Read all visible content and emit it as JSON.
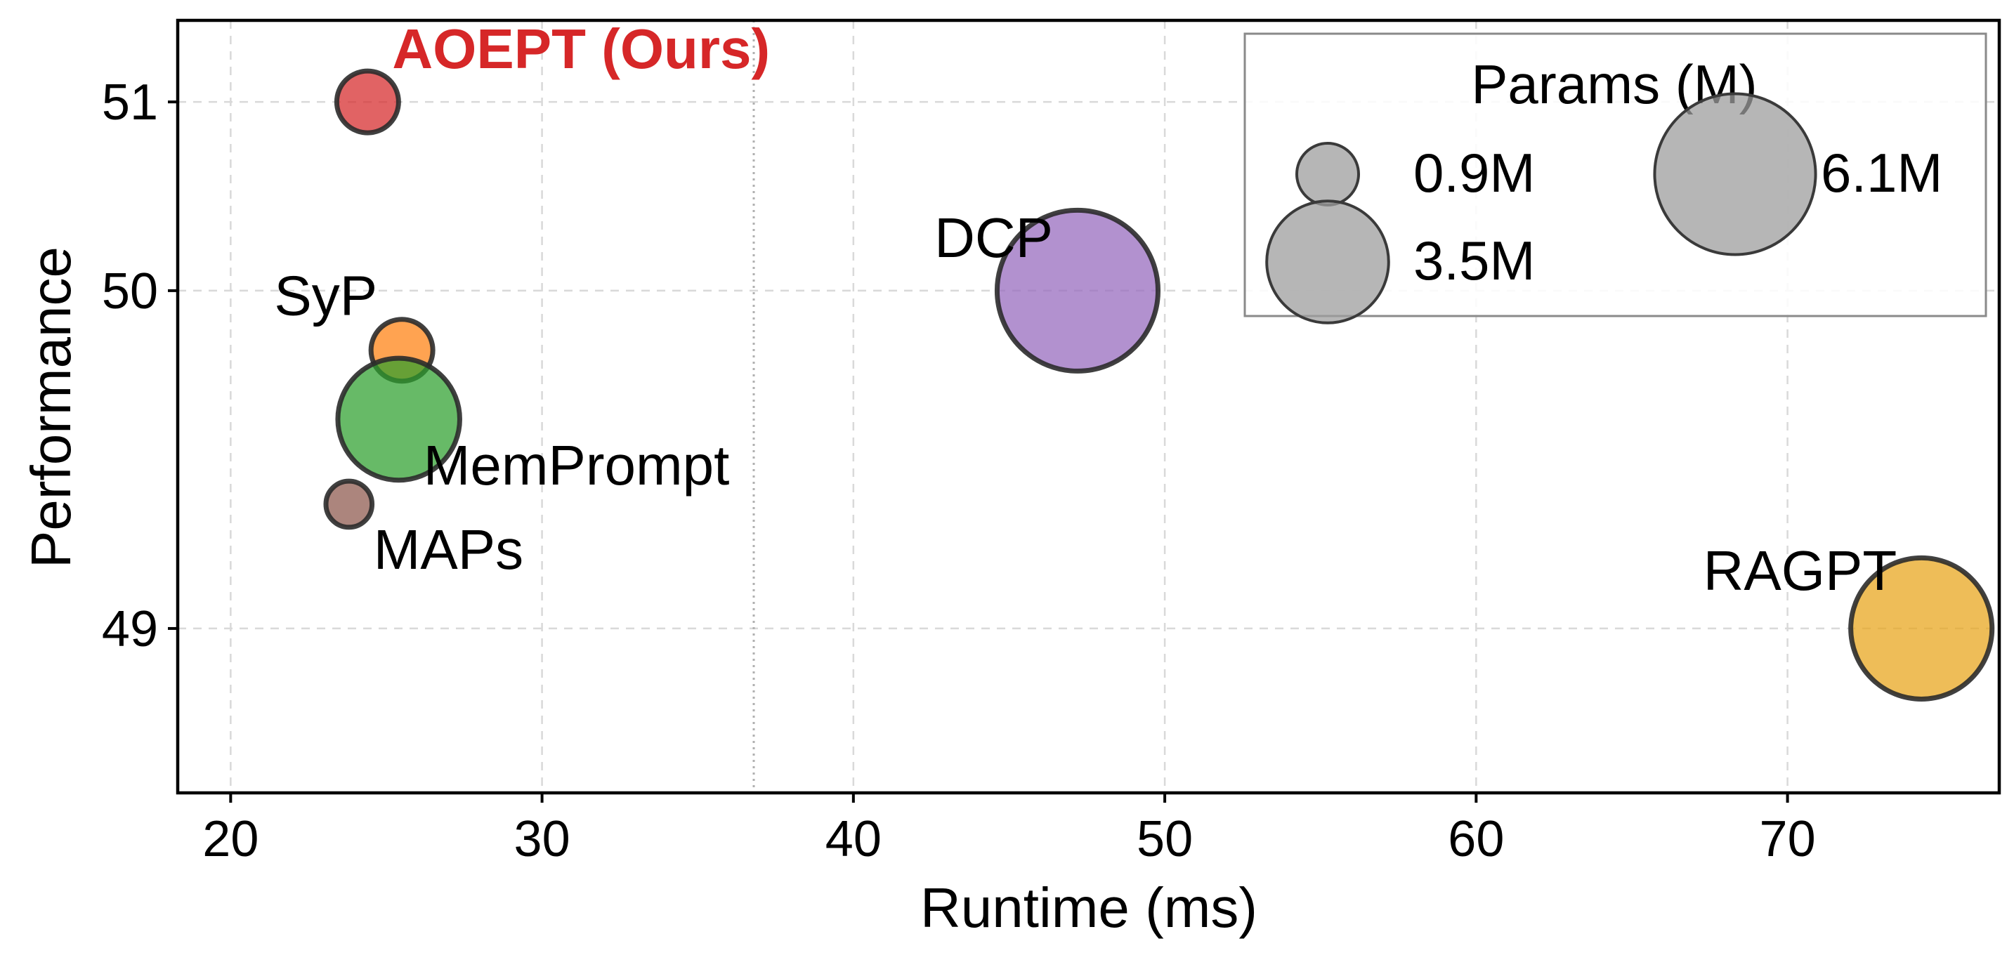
{
  "chart_data": {
    "type": "scatter",
    "xlabel": "Runtime (ms)",
    "ylabel": "Performance",
    "xlim": [
      18.3,
      76.8
    ],
    "ylim": [
      48.88,
      51.53
    ],
    "y_scale": "sqrt",
    "x_ticks": [
      20,
      30,
      40,
      50,
      60,
      70
    ],
    "y_ticks": [
      49,
      50,
      51
    ],
    "grid": true,
    "reference_line_x": 36.8,
    "legend_placement": "top-right",
    "points": [
      {
        "label": "AOEPT (Ours)",
        "x": 24.4,
        "y": 51.0,
        "params_m": 0.9,
        "color": "#d62728",
        "label_color": "#d62728",
        "label_bold": true
      },
      {
        "label": "DCP",
        "x": 47.2,
        "y": 50.0,
        "params_m": 6.1,
        "color": "#9467bd"
      },
      {
        "label": "SyP",
        "x": 25.5,
        "y": 49.75,
        "params_m": 0.9,
        "color": "#ff7f0e"
      },
      {
        "label": "MemPrompt",
        "x": 25.4,
        "y": 49.5,
        "params_m": 3.5,
        "color": "#2ca02c"
      },
      {
        "label": "MAPs",
        "x": 23.8,
        "y": 49.25,
        "params_m": 0.5,
        "color": "#8c564b"
      },
      {
        "label": "RAGPT",
        "x": 74.3,
        "y": 49.0,
        "params_m": 4.7,
        "color": "#e8a317"
      }
    ],
    "legend": {
      "title": "Params (M)",
      "entries": [
        {
          "label": "0.9M",
          "params_m": 0.9
        },
        {
          "label": "3.5M",
          "params_m": 3.5
        },
        {
          "label": "6.1M",
          "params_m": 6.1
        }
      ]
    }
  }
}
